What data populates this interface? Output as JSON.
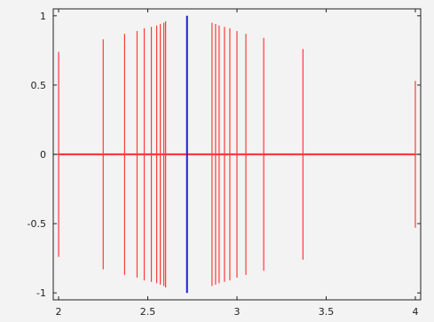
{
  "chart_data": {
    "type": "line",
    "title": "",
    "xlabel": "",
    "ylabel": "",
    "xlim": [
      1.97,
      4.03
    ],
    "ylim": [
      -1.05,
      1.05
    ],
    "grid": false,
    "x_ticks": [
      2,
      2.5,
      3,
      3.5,
      4
    ],
    "x_tick_labels": [
      "2",
      "2.5",
      "3",
      "3.5",
      "4"
    ],
    "y_ticks": [
      1,
      0.5,
      0,
      -0.5,
      -1
    ],
    "y_tick_labels": [
      "1",
      "0.5",
      "0",
      "-0.5",
      "-1"
    ],
    "colors": {
      "axis": "#222222",
      "baseline": "#555555",
      "red": "#ff3b3b",
      "blue": "#1c1cdc",
      "background": "#f3f3f3"
    },
    "series": [
      {
        "color": "red",
        "style": "stems",
        "points": [
          {
            "x": 2.0,
            "y": 0.74
          },
          {
            "x": 2.25,
            "y": 0.83
          },
          {
            "x": 2.37,
            "y": 0.87
          },
          {
            "x": 2.44,
            "y": 0.89
          },
          {
            "x": 2.48,
            "y": 0.91
          },
          {
            "x": 2.52,
            "y": 0.92
          },
          {
            "x": 2.55,
            "y": 0.93
          },
          {
            "x": 2.57,
            "y": 0.94
          },
          {
            "x": 2.59,
            "y": 0.95
          },
          {
            "x": 2.6,
            "y": 0.96
          },
          {
            "x": 2.86,
            "y": 0.95
          },
          {
            "x": 2.88,
            "y": 0.94
          },
          {
            "x": 2.9,
            "y": 0.93
          },
          {
            "x": 2.93,
            "y": 0.92
          },
          {
            "x": 2.96,
            "y": 0.91
          },
          {
            "x": 3.0,
            "y": 0.89
          },
          {
            "x": 3.05,
            "y": 0.87
          },
          {
            "x": 3.15,
            "y": 0.84
          },
          {
            "x": 3.37,
            "y": 0.76
          },
          {
            "x": 4.0,
            "y": 0.53
          }
        ]
      },
      {
        "color": "red",
        "style": "line",
        "points": [
          {
            "x": 2.0,
            "y": 0
          },
          {
            "x": 4.0,
            "y": 0
          }
        ]
      },
      {
        "color": "blue",
        "style": "stems",
        "points": [
          {
            "x": 2.72,
            "y": 1.0
          }
        ]
      }
    ]
  }
}
